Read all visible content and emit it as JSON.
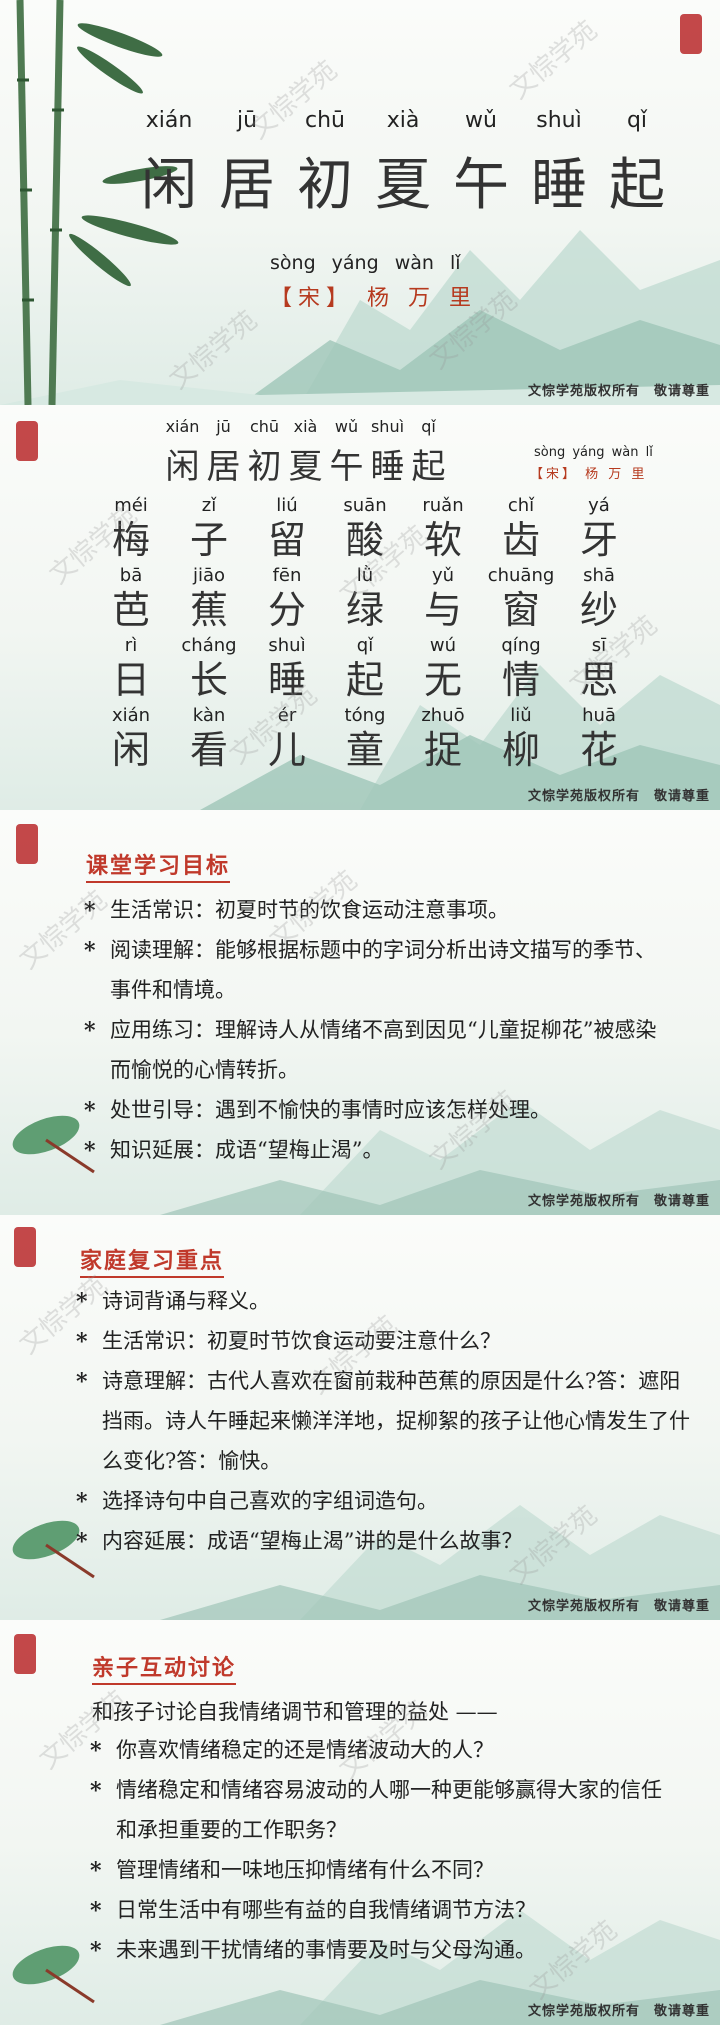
{
  "watermark": "文悰学苑",
  "copyright": "文悰学苑版权所有　敬请尊重",
  "title": {
    "pinyin": [
      "xián",
      "jū",
      "chū",
      "xià",
      "wǔ",
      "shuì",
      "qǐ"
    ],
    "chars": [
      "闲",
      "居",
      "初",
      "夏",
      "午",
      "睡",
      "起"
    ],
    "author_pinyin": "sòng yáng wàn lǐ",
    "author": "【宋】 杨 万 里"
  },
  "poem": [
    {
      "pinyin": [
        "méi",
        "zǐ",
        "liú",
        "suān",
        "ruǎn",
        "chǐ",
        "yá"
      ],
      "chars": [
        "梅",
        "子",
        "留",
        "酸",
        "软",
        "齿",
        "牙"
      ]
    },
    {
      "pinyin": [
        "bā",
        "jiāo",
        "fēn",
        "lǜ",
        "yǔ",
        "chuāng",
        "shā"
      ],
      "chars": [
        "芭",
        "蕉",
        "分",
        "绿",
        "与",
        "窗",
        "纱"
      ]
    },
    {
      "pinyin": [
        "rì",
        "cháng",
        "shuì",
        "qǐ",
        "wú",
        "qíng",
        "sī"
      ],
      "chars": [
        "日",
        "长",
        "睡",
        "起",
        "无",
        "情",
        "思"
      ]
    },
    {
      "pinyin": [
        "xián",
        "kàn",
        "ér",
        "tóng",
        "zhuō",
        "liǔ",
        "huā"
      ],
      "chars": [
        "闲",
        "看",
        "儿",
        "童",
        "捉",
        "柳",
        "花"
      ]
    }
  ],
  "goals": {
    "heading": "课堂学习目标",
    "items": [
      "生活常识：初夏时节的饮食运动注意事项。",
      "阅读理解：能够根据标题中的字词分析出诗文描写的季节、事件和情境。",
      "应用练习：理解诗人从情绪不高到因见“儿童捉柳花”被感染而愉悦的心情转折。",
      "处世引导：遇到不愉快的事情时应该怎样处理。",
      "知识延展：成语“望梅止渴”。"
    ]
  },
  "review": {
    "heading": "家庭复习重点",
    "items": [
      "诗词背诵与释义。",
      "生活常识：初夏时节饮食运动要注意什么？",
      "诗意理解：古代人喜欢在窗前栽种芭蕉的原因是什么?答：遮阳挡雨。诗人午睡起来懒洋洋地，捉柳絮的孩子让他心情发生了什么变化?答：愉快。",
      "选择诗句中自己喜欢的字组词造句。",
      "内容延展：成语“望梅止渴”讲的是什么故事？"
    ]
  },
  "discuss": {
    "heading": "亲子互动讨论",
    "intro": "和孩子讨论自我情绪调节和管理的益处 ——",
    "items": [
      "你喜欢情绪稳定的还是情绪波动大的人？",
      "情绪稳定和情绪容易波动的人哪一种更能够赢得大家的信任和承担重要的工作职务？",
      "管理情绪和一味地压抑情绪有什么不同？",
      "日常生活中有哪些有益的自我情绪调节方法？",
      "未来遇到干扰情绪的事情要及时与父母沟通。"
    ]
  },
  "colors": {
    "accent": "#c0392b",
    "seal": "#b8282a",
    "mountain": "#9fc5b8"
  }
}
